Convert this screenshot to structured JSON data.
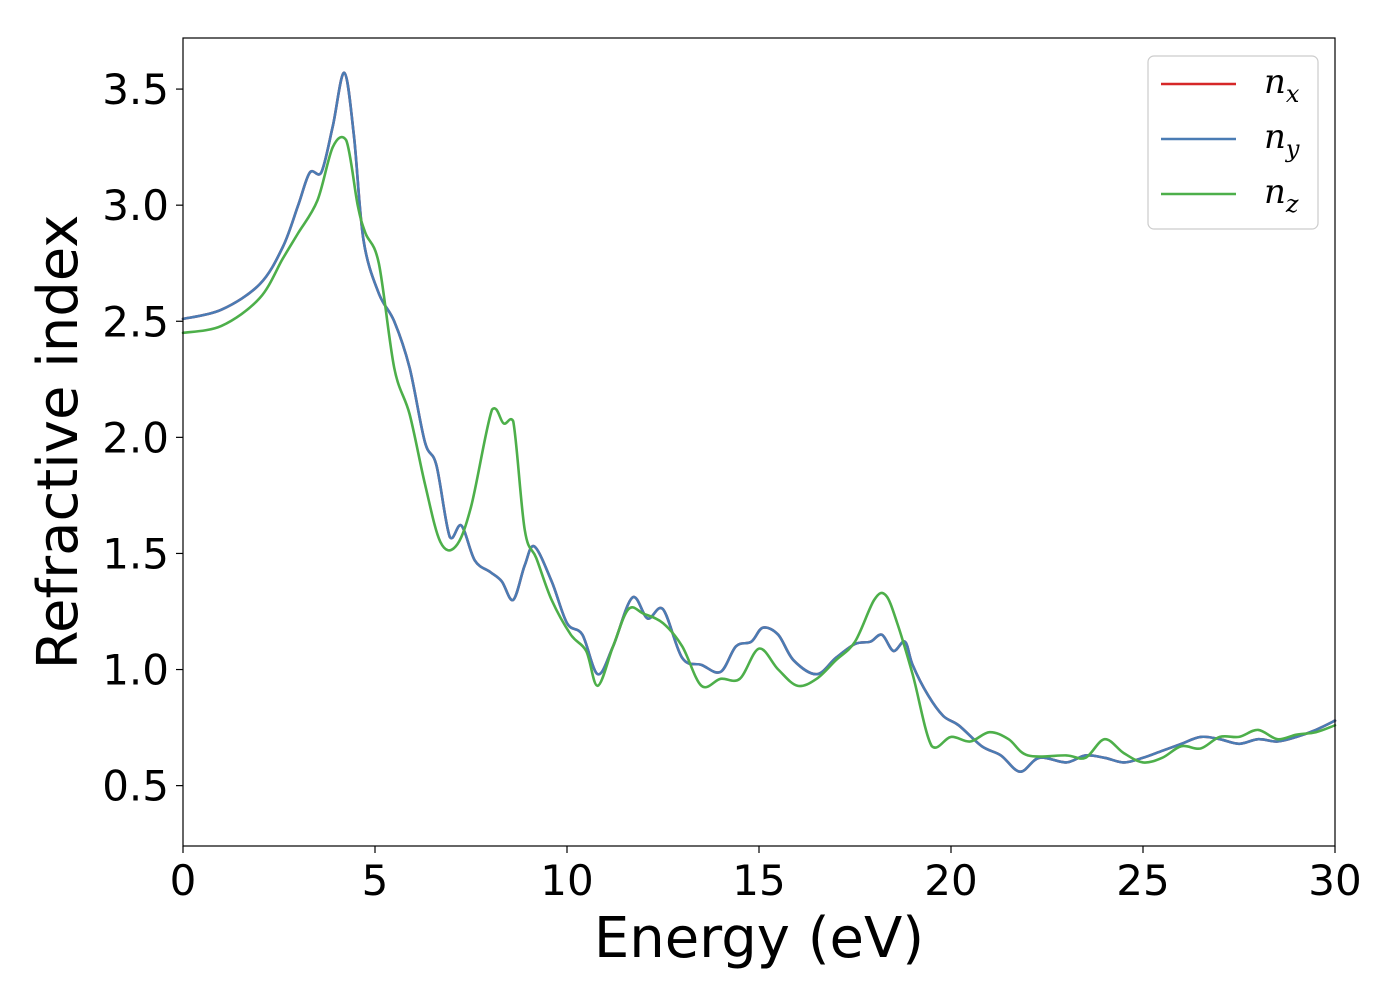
{
  "chart_data": {
    "type": "line",
    "title": "",
    "xlabel": "Energy (eV)",
    "ylabel": "Refractive index",
    "xlim": [
      0,
      30
    ],
    "ylim": [
      0.24,
      3.72
    ],
    "xticks": [
      0,
      5,
      10,
      15,
      20,
      25,
      30
    ],
    "yticks": [
      0.5,
      1.0,
      1.5,
      2.0,
      2.5,
      3.0,
      3.5
    ],
    "xtick_labels": [
      "0",
      "5",
      "10",
      "15",
      "20",
      "25",
      "30"
    ],
    "ytick_labels": [
      "0.5",
      "1.0",
      "1.5",
      "2.0",
      "2.5",
      "3.0",
      "3.5"
    ],
    "grid": false,
    "legend_position": "top-right",
    "series": [
      {
        "name": "n_x",
        "legend_base": "n",
        "legend_sub": "x",
        "color": "#d62728",
        "x": [
          0,
          1,
          2,
          2.6,
          3,
          3.3,
          3.6,
          3.9,
          4.2,
          4.45,
          4.7,
          5.1,
          5.5,
          5.9,
          6.3,
          6.6,
          6.95,
          7.25,
          7.6,
          8,
          8.3,
          8.6,
          8.9,
          9.15,
          9.6,
          10,
          10.4,
          10.8,
          11.2,
          11.7,
          12.1,
          12.5,
          13,
          13.5,
          14,
          14.4,
          14.8,
          15.1,
          15.5,
          15.9,
          16.5,
          17,
          17.5,
          17.9,
          18.2,
          18.5,
          18.8,
          19,
          19.4,
          19.8,
          20.2,
          20.8,
          21.3,
          21.8,
          22.3,
          23,
          23.5,
          24,
          24.5,
          25,
          25.5,
          26,
          26.5,
          27,
          27.5,
          28,
          28.5,
          29,
          29.5,
          30
        ],
        "y": [
          2.51,
          2.55,
          2.66,
          2.82,
          3.0,
          3.14,
          3.14,
          3.34,
          3.57,
          3.3,
          2.85,
          2.62,
          2.5,
          2.3,
          1.98,
          1.88,
          1.57,
          1.62,
          1.47,
          1.42,
          1.38,
          1.3,
          1.45,
          1.53,
          1.38,
          1.2,
          1.15,
          0.98,
          1.1,
          1.31,
          1.22,
          1.26,
          1.05,
          1.02,
          0.99,
          1.1,
          1.12,
          1.18,
          1.15,
          1.04,
          0.98,
          1.05,
          1.11,
          1.12,
          1.15,
          1.08,
          1.12,
          1.02,
          0.89,
          0.8,
          0.76,
          0.67,
          0.63,
          0.56,
          0.62,
          0.6,
          0.63,
          0.62,
          0.6,
          0.62,
          0.65,
          0.68,
          0.71,
          0.7,
          0.68,
          0.7,
          0.69,
          0.71,
          0.74,
          0.78
        ]
      },
      {
        "name": "n_y",
        "legend_base": "n",
        "legend_sub": "y",
        "color": "#4a7cb4",
        "x": [
          0,
          1,
          2,
          2.6,
          3,
          3.3,
          3.6,
          3.9,
          4.2,
          4.45,
          4.7,
          5.1,
          5.5,
          5.9,
          6.3,
          6.6,
          6.95,
          7.25,
          7.6,
          8,
          8.3,
          8.6,
          8.9,
          9.15,
          9.6,
          10,
          10.4,
          10.8,
          11.2,
          11.7,
          12.1,
          12.5,
          13,
          13.5,
          14,
          14.4,
          14.8,
          15.1,
          15.5,
          15.9,
          16.5,
          17,
          17.5,
          17.9,
          18.2,
          18.5,
          18.8,
          19,
          19.4,
          19.8,
          20.2,
          20.8,
          21.3,
          21.8,
          22.3,
          23,
          23.5,
          24,
          24.5,
          25,
          25.5,
          26,
          26.5,
          27,
          27.5,
          28,
          28.5,
          29,
          29.5,
          30
        ],
        "y": [
          2.51,
          2.55,
          2.66,
          2.82,
          3.0,
          3.14,
          3.14,
          3.34,
          3.57,
          3.3,
          2.85,
          2.62,
          2.5,
          2.3,
          1.98,
          1.88,
          1.57,
          1.62,
          1.47,
          1.42,
          1.38,
          1.3,
          1.45,
          1.53,
          1.38,
          1.2,
          1.15,
          0.98,
          1.1,
          1.31,
          1.22,
          1.26,
          1.05,
          1.02,
          0.99,
          1.1,
          1.12,
          1.18,
          1.15,
          1.04,
          0.98,
          1.05,
          1.11,
          1.12,
          1.15,
          1.08,
          1.12,
          1.02,
          0.89,
          0.8,
          0.76,
          0.67,
          0.63,
          0.56,
          0.62,
          0.6,
          0.63,
          0.62,
          0.6,
          0.62,
          0.65,
          0.68,
          0.71,
          0.7,
          0.68,
          0.7,
          0.69,
          0.71,
          0.74,
          0.78
        ]
      },
      {
        "name": "n_z",
        "legend_base": "n",
        "legend_sub": "z",
        "color": "#4daf4a",
        "x": [
          0,
          1,
          2,
          2.6,
          3,
          3.5,
          3.9,
          4.25,
          4.55,
          4.75,
          5.1,
          5.5,
          5.9,
          6.3,
          6.7,
          7.1,
          7.5,
          8.05,
          8.35,
          8.6,
          8.9,
          9.2,
          9.6,
          10.1,
          10.5,
          10.8,
          11.2,
          11.6,
          12,
          12.5,
          13,
          13.5,
          14,
          14.5,
          15,
          15.5,
          16,
          16.5,
          17,
          17.5,
          18,
          18.3,
          18.6,
          19,
          19.5,
          20,
          20.5,
          21,
          21.5,
          22,
          23,
          23.5,
          24,
          24.5,
          25,
          25.5,
          26,
          26.5,
          27,
          27.5,
          28,
          28.5,
          29,
          29.5,
          30
        ],
        "y": [
          2.45,
          2.48,
          2.6,
          2.77,
          2.88,
          3.02,
          3.25,
          3.28,
          3.0,
          2.88,
          2.75,
          2.3,
          2.1,
          1.8,
          1.55,
          1.53,
          1.7,
          2.12,
          2.06,
          2.07,
          1.6,
          1.48,
          1.3,
          1.15,
          1.08,
          0.93,
          1.1,
          1.26,
          1.24,
          1.2,
          1.1,
          0.93,
          0.96,
          0.96,
          1.09,
          1.0,
          0.93,
          0.96,
          1.04,
          1.12,
          1.3,
          1.32,
          1.2,
          0.98,
          0.67,
          0.71,
          0.69,
          0.73,
          0.7,
          0.63,
          0.63,
          0.62,
          0.7,
          0.64,
          0.6,
          0.62,
          0.67,
          0.66,
          0.71,
          0.71,
          0.74,
          0.7,
          0.72,
          0.73,
          0.76
        ]
      }
    ]
  }
}
